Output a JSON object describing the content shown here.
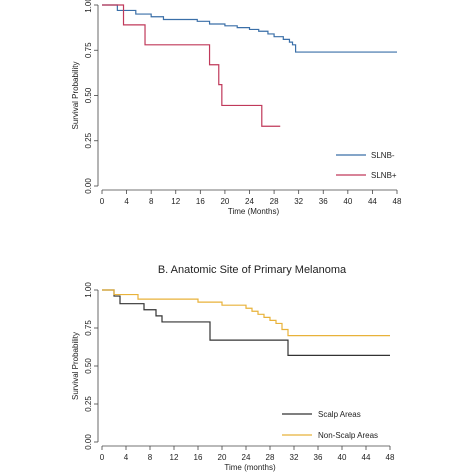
{
  "chart_data": [
    {
      "type": "line",
      "step": true,
      "title": "",
      "xlabel": "Time (Months)",
      "ylabel": "Survival Probability",
      "xlim": [
        0,
        48
      ],
      "ylim": [
        0,
        1
      ],
      "xticks": [
        "0",
        "4",
        "8",
        "12",
        "16",
        "20",
        "24",
        "28",
        "32",
        "36",
        "40",
        "44",
        "48"
      ],
      "yticks": [
        "0.00",
        "0.25",
        "0.50",
        "0.75",
        "1.00"
      ],
      "legend_position": "lower-right",
      "grid": false,
      "series": [
        {
          "name": "SLNB-",
          "color": "#3a6fa8",
          "x": [
            0,
            2.5,
            5.5,
            8,
            10,
            15.5,
            17.5,
            20,
            22,
            24,
            25.5,
            27,
            28,
            29.5,
            30.5,
            31,
            31.5,
            48
          ],
          "y": [
            1.0,
            0.97,
            0.95,
            0.935,
            0.92,
            0.91,
            0.895,
            0.885,
            0.875,
            0.865,
            0.855,
            0.84,
            0.825,
            0.81,
            0.795,
            0.78,
            0.74,
            0.74
          ]
        },
        {
          "name": "SLNB+",
          "color": "#c0395a",
          "x": [
            0,
            3.5,
            7,
            17,
            17.5,
            19,
            19.5,
            26,
            29
          ],
          "y": [
            1.0,
            0.89,
            0.78,
            0.78,
            0.67,
            0.56,
            0.445,
            0.33,
            0.33
          ]
        }
      ]
    },
    {
      "type": "line",
      "step": true,
      "title": "B. Anatomic Site of Primary Melanoma",
      "xlabel": "Time (months)",
      "ylabel": "Survival Probability",
      "xlim": [
        0,
        48
      ],
      "ylim": [
        0,
        1
      ],
      "xticks": [
        "0",
        "4",
        "8",
        "12",
        "16",
        "20",
        "24",
        "28",
        "32",
        "36",
        "40",
        "44",
        "48"
      ],
      "yticks": [
        "0.00",
        "0.25",
        "0.50",
        "0.75",
        "1.00"
      ],
      "legend_position": "lower-right",
      "grid": false,
      "series": [
        {
          "name": "Scalp Areas",
          "color": "#333333",
          "x": [
            0,
            2,
            3,
            7,
            9,
            10,
            18,
            31,
            48
          ],
          "y": [
            1.0,
            0.96,
            0.91,
            0.87,
            0.83,
            0.79,
            0.67,
            0.57,
            0.57
          ]
        },
        {
          "name": "Non-Scalp Areas",
          "color": "#e8b23a",
          "x": [
            0,
            2,
            6,
            16,
            20,
            24,
            25,
            26,
            27,
            28,
            29,
            30,
            31,
            48
          ],
          "y": [
            1.0,
            0.97,
            0.94,
            0.92,
            0.9,
            0.88,
            0.86,
            0.84,
            0.82,
            0.8,
            0.78,
            0.74,
            0.7,
            0.7
          ]
        }
      ]
    }
  ]
}
